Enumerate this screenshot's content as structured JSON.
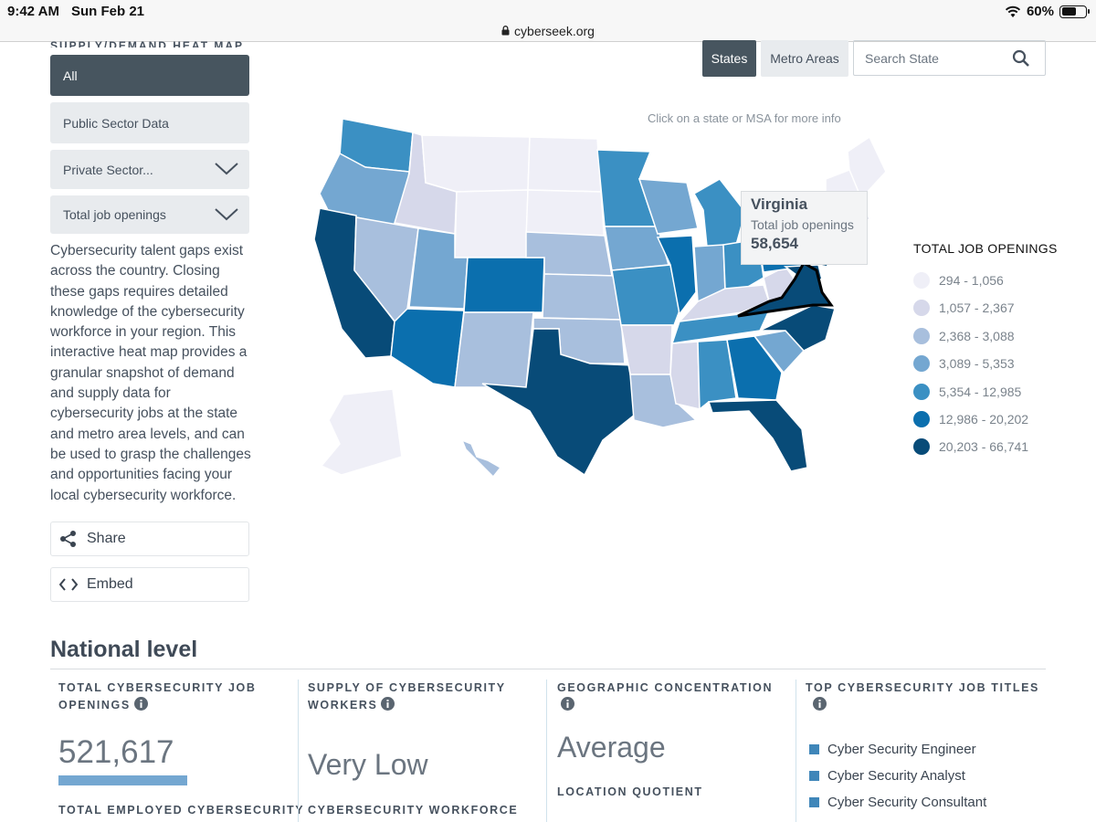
{
  "status_bar": {
    "time": "9:42 AM",
    "date": "Sun Feb 21",
    "battery": "60%",
    "battery_level": 0.6
  },
  "url": "cyberseek.org",
  "sidebar": {
    "section_label": "SUPPLY/DEMAND HEAT MAP",
    "all": "All",
    "public": "Public Sector Data",
    "private": "Private Sector...",
    "metric": "Total job openings",
    "intro": "Cybersecurity talent gaps exist across the country. Closing these gaps requires detailed knowledge of the cybersecurity workforce in your region. This interactive heat map provides a granular snapshot of demand and supply data for cybersecurity jobs at the state and metro area levels, and can be used to grasp the challenges and opportunities facing your local cybersecurity workforce.",
    "share": "Share",
    "embed": "Embed"
  },
  "controls": {
    "states": "States",
    "metro": "Metro Areas",
    "search_placeholder": "Search State"
  },
  "map": {
    "hint": "Click on a state or MSA for more info",
    "tooltip": {
      "name": "Virginia",
      "label": "Total job openings",
      "value": "58,654"
    },
    "selected_state": "Virginia"
  },
  "legend": {
    "title": "TOTAL JOB OPENINGS",
    "items": [
      {
        "range": "294 - 1,056",
        "color": "#efeff7"
      },
      {
        "range": "1,057 - 2,367",
        "color": "#d6d8ea"
      },
      {
        "range": "2,368 - 3,088",
        "color": "#a8bfdd"
      },
      {
        "range": "3,089 - 5,353",
        "color": "#74a7d1"
      },
      {
        "range": "5,354 - 12,985",
        "color": "#3b90c3"
      },
      {
        "range": "12,986 - 20,202",
        "color": "#0b6fae"
      },
      {
        "range": "20,203 - 66,741",
        "color": "#084b78"
      }
    ]
  },
  "national": {
    "title": "National level",
    "col1": {
      "head": "TOTAL CYBERSECURITY JOB OPENINGS",
      "value": "521,617",
      "foot": "TOTAL EMPLOYED CYBERSECURITY"
    },
    "col2": {
      "head": "SUPPLY OF CYBERSECURITY WORKERS",
      "value": "Very Low",
      "foot": "CYBERSECURITY WORKFORCE"
    },
    "col3": {
      "head": "GEOGRAPHIC CONCENTRATION",
      "value": "Average",
      "foot": "LOCATION QUOTIENT"
    },
    "col4": {
      "head": "TOP CYBERSECURITY JOB TITLES",
      "jobs": [
        "Cyber Security Engineer",
        "Cyber Security Analyst",
        "Cyber Security Consultant"
      ]
    }
  }
}
